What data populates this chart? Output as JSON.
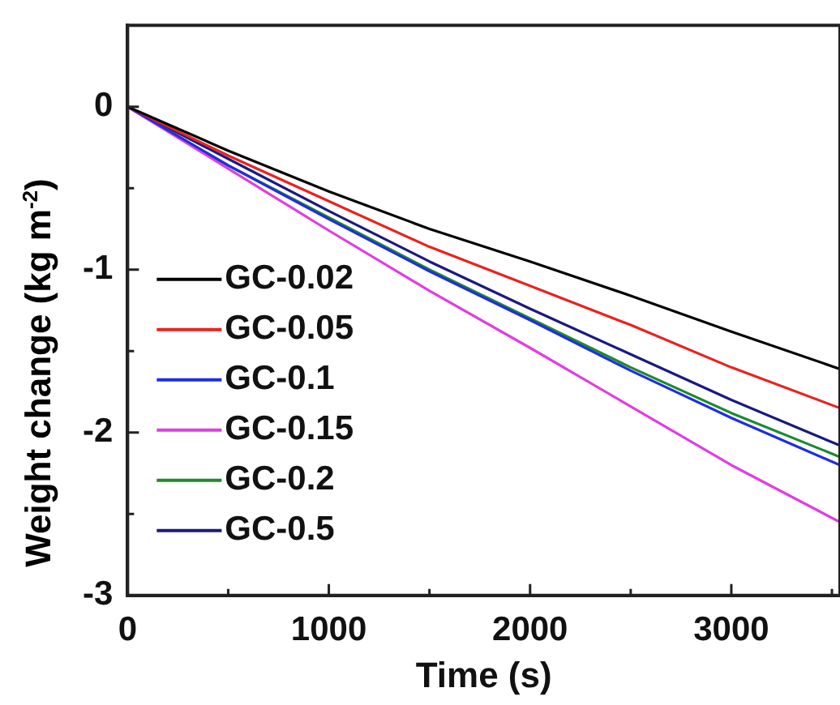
{
  "chart_data": {
    "type": "line",
    "xlabel": "Time (s)",
    "ylabel": "Weight change (kg m$^{-2}$)",
    "x": [
      0,
      500,
      1000,
      1500,
      2000,
      2500,
      3000,
      3540
    ],
    "series": [
      {
        "name": "GC-0.02",
        "color": "#000000",
        "values": [
          0,
          -0.27,
          -0.52,
          -0.75,
          -0.95,
          -1.16,
          -1.38,
          -1.61
        ]
      },
      {
        "name": "GC-0.05",
        "color": "#e8231f",
        "values": [
          0,
          -0.3,
          -0.58,
          -0.86,
          -1.1,
          -1.34,
          -1.6,
          -1.85
        ]
      },
      {
        "name": "GC-0.1",
        "color": "#1f2ee0",
        "values": [
          0,
          -0.36,
          -0.69,
          -1.01,
          -1.31,
          -1.62,
          -1.91,
          -2.2
        ]
      },
      {
        "name": "GC-0.15",
        "color": "#e03ee0",
        "values": [
          0,
          -0.38,
          -0.76,
          -1.13,
          -1.48,
          -1.84,
          -2.2,
          -2.55
        ]
      },
      {
        "name": "GC-0.2",
        "color": "#1e8a2e",
        "values": [
          0,
          -0.36,
          -0.68,
          -1.0,
          -1.3,
          -1.6,
          -1.88,
          -2.15
        ]
      },
      {
        "name": "GC-0.5",
        "color": "#1a1a80",
        "values": [
          0,
          -0.32,
          -0.64,
          -0.95,
          -1.24,
          -1.52,
          -1.8,
          -2.08
        ]
      }
    ],
    "xlim": [
      0,
      3540
    ],
    "ylim": [
      -3,
      0.5
    ],
    "xticks": [
      0,
      {
        "value": 500,
        "label": null
      },
      1000,
      {
        "value": 1500,
        "label": null
      },
      2000,
      {
        "value": 2500,
        "label": null
      },
      3000,
      {
        "value": 3500,
        "label": null
      }
    ],
    "yticks": [
      -3,
      {
        "value": -2.5,
        "label": null
      },
      -2,
      {
        "value": -1.5,
        "label": null
      },
      -1,
      {
        "value": -0.5,
        "label": null
      },
      0
    ],
    "legend": "bottom left",
    "grid": false,
    "marker": "none",
    "line_style": "solid"
  }
}
